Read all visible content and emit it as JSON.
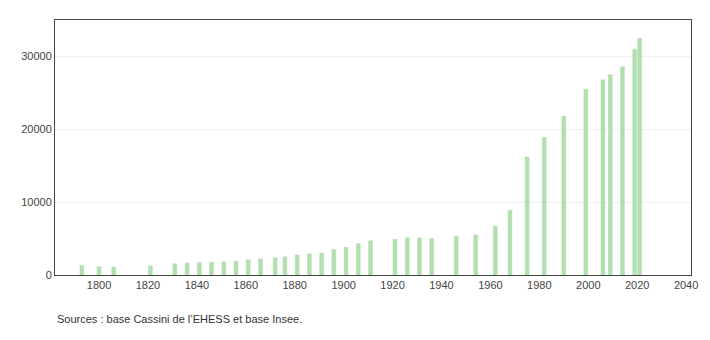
{
  "chart_data": {
    "type": "bar",
    "x": [
      1793,
      1800,
      1806,
      1821,
      1831,
      1836,
      1841,
      1846,
      1851,
      1856,
      1861,
      1866,
      1872,
      1876,
      1881,
      1886,
      1891,
      1896,
      1901,
      1906,
      1911,
      1921,
      1926,
      1931,
      1936,
      1946,
      1954,
      1962,
      1968,
      1975,
      1982,
      1990,
      1999,
      2006,
      2009,
      2014,
      2019,
      2021
    ],
    "values": [
      1300,
      1150,
      1100,
      1250,
      1550,
      1650,
      1700,
      1750,
      1800,
      1900,
      2100,
      2200,
      2350,
      2500,
      2750,
      2900,
      3000,
      3500,
      3800,
      4300,
      4700,
      4900,
      5100,
      5100,
      5000,
      5300,
      5500,
      6700,
      8900,
      16200,
      18900,
      21800,
      25500,
      26800,
      27500,
      28600,
      31000,
      32500
    ],
    "color": "#b2dfb0",
    "xlim": [
      1782,
      2042
    ],
    "xticks": [
      1800,
      1820,
      1840,
      1860,
      1880,
      1900,
      1920,
      1940,
      1960,
      1980,
      2000,
      2020,
      2040
    ],
    "ylim": [
      0,
      35000
    ],
    "yticks": [
      0,
      10000,
      20000,
      30000
    ],
    "grid": true,
    "annotations": [
      "Sources : base Cassini de l’EHESS et base Insee."
    ]
  }
}
